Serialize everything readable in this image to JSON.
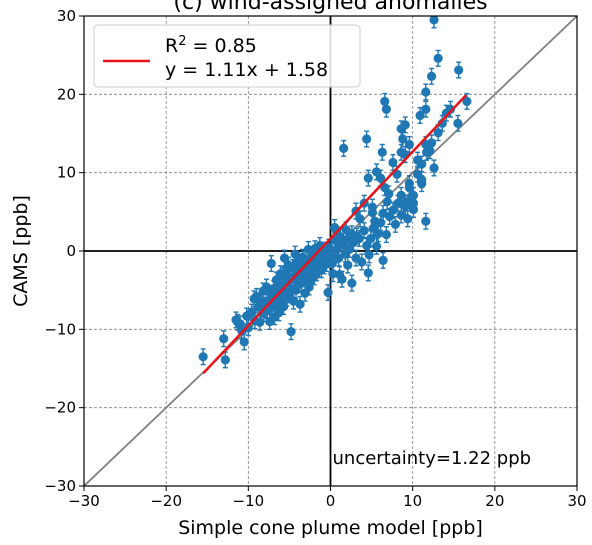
{
  "chart_data": {
    "type": "scatter",
    "title": "(c) wind-assigned anomalies",
    "xlabel": "Simple cone plume model [ppb]",
    "ylabel": "CAMS [ppb]",
    "xlim": [
      -30,
      30
    ],
    "ylim": [
      -30,
      30
    ],
    "xticks": [
      -30,
      -20,
      -10,
      0,
      10,
      20,
      30
    ],
    "yticks": [
      -30,
      -20,
      -10,
      0,
      10,
      20,
      30
    ],
    "xtick_labels": [
      "−30",
      "−20",
      "−10",
      "0",
      "10",
      "20",
      "30"
    ],
    "ytick_labels": [
      "−30",
      "−20",
      "−10",
      "0",
      "10",
      "20",
      "30"
    ],
    "grid": true,
    "grid_style": "dashed",
    "legend_position": "top-left",
    "colors": {
      "points": "#1f77b4",
      "fit": "#e8141a",
      "identity": "#808080",
      "zero_lines": "#000000",
      "grid": "#808080"
    },
    "legend": {
      "label_r2_prefix": "R",
      "label_r2_sup": "2",
      "label_r2_suffix": " = 0.85",
      "label_eq": "y = 1.11x + 1.58"
    },
    "annotation": "uncertainty=1.22 ppb",
    "error_bar_halfwidth": 1.0,
    "fit": {
      "slope": 1.11,
      "intercept": 1.58,
      "x_range": [
        -15.5,
        16.5
      ],
      "r2": 0.85
    },
    "identity_line": {
      "slope": 1,
      "intercept": 0
    },
    "points": [
      [
        -15.5,
        -13.5
      ],
      [
        -13,
        -11.2
      ],
      [
        -12.8,
        -13.9
      ],
      [
        -11.5,
        -8.8
      ],
      [
        -11,
        -9.3
      ],
      [
        -10.8,
        -10.2
      ],
      [
        -10.5,
        -11.6
      ],
      [
        -10.2,
        -8.3
      ],
      [
        -10,
        -9.8
      ],
      [
        -9.6,
        -7.8
      ],
      [
        -9.3,
        -6.1
      ],
      [
        -9.2,
        -8.9
      ],
      [
        -9,
        -5.8
      ],
      [
        -8.8,
        -7.2
      ],
      [
        -8.6,
        -9.1
      ],
      [
        -8.4,
        -6.6
      ],
      [
        -8.2,
        -5.1
      ],
      [
        -8.1,
        -8.0
      ],
      [
        -8,
        -6.9
      ],
      [
        -7.8,
        -4.6
      ],
      [
        -7.7,
        -7.6
      ],
      [
        -7.5,
        -6.3
      ],
      [
        -7.4,
        -9.0
      ],
      [
        -7.3,
        -5.4
      ],
      [
        -7.2,
        -1.6
      ],
      [
        -7.1,
        -7.2
      ],
      [
        -7,
        -6.1
      ],
      [
        -6.9,
        -4.8
      ],
      [
        -6.8,
        -8.4
      ],
      [
        -6.7,
        -5.9
      ],
      [
        -6.6,
        -3.7
      ],
      [
        -6.5,
        -6.8
      ],
      [
        -6.4,
        -4.2
      ],
      [
        -6.3,
        -7.9
      ],
      [
        -6.2,
        -5.3
      ],
      [
        -6.1,
        -2.9
      ],
      [
        -6,
        -6.4
      ],
      [
        -5.9,
        -4.6
      ],
      [
        -5.8,
        -3.1
      ],
      [
        -5.7,
        -7.1
      ],
      [
        -5.6,
        -0.9
      ],
      [
        -5.5,
        -5.2
      ],
      [
        -5.4,
        -2.4
      ],
      [
        -5.3,
        -6.0
      ],
      [
        -5.2,
        -4.0
      ],
      [
        -5.1,
        -1.8
      ],
      [
        -5,
        -5.6
      ],
      [
        -4.9,
        -3.3
      ],
      [
        -4.8,
        -10.3
      ],
      [
        -4.7,
        -4.8
      ],
      [
        -4.6,
        -2.1
      ],
      [
        -4.5,
        -6.4
      ],
      [
        -4.4,
        -3.6
      ],
      [
        -4.3,
        -0.4
      ],
      [
        -4.2,
        -5.0
      ],
      [
        -4.1,
        -2.7
      ],
      [
        -4,
        -1.3
      ],
      [
        -3.9,
        -4.3
      ],
      [
        -3.8,
        -3.0
      ],
      [
        -3.7,
        -6.8
      ],
      [
        -3.6,
        -1.9
      ],
      [
        -3.5,
        -4.1
      ],
      [
        -3.4,
        -0.8
      ],
      [
        -3.3,
        -3.4
      ],
      [
        -3.2,
        -2.2
      ],
      [
        -3.1,
        -5.4
      ],
      [
        -3,
        -1.1
      ],
      [
        -2.9,
        -3.1
      ],
      [
        -2.8,
        -2.6
      ],
      [
        -2.7,
        0.2
      ],
      [
        -2.6,
        -4.6
      ],
      [
        -2.5,
        -1.6
      ],
      [
        -2.4,
        -3.9
      ],
      [
        -2.3,
        -0.6
      ],
      [
        -2.2,
        -2.1
      ],
      [
        -2.1,
        -1.3
      ],
      [
        -2,
        -3.3
      ],
      [
        -1.9,
        0.3
      ],
      [
        -1.8,
        -1.8
      ],
      [
        -1.7,
        -2.8
      ],
      [
        -1.6,
        -0.9
      ],
      [
        -1.5,
        -2.3
      ],
      [
        -1.4,
        -1.5
      ],
      [
        -1.3,
        0.7
      ],
      [
        -1.2,
        -0.9
      ],
      [
        -1.1,
        -2.4
      ],
      [
        -1,
        -1.3
      ],
      [
        -0.9,
        -0.6
      ],
      [
        -0.8,
        -1.9
      ],
      [
        -0.7,
        0.1
      ],
      [
        -0.6,
        -0.8
      ],
      [
        -0.5,
        -1.6
      ],
      [
        -0.4,
        -0.3
      ],
      [
        -0.3,
        -1.1
      ],
      [
        -0.2,
        0.5
      ],
      [
        -0.1,
        -0.4
      ],
      [
        -0.3,
        -5.3
      ],
      [
        0.2,
        -1.6
      ],
      [
        0.3,
        -2.9
      ],
      [
        0.6,
        -0.5
      ],
      [
        0.5,
        1.4
      ],
      [
        0.9,
        0.3
      ],
      [
        1,
        -0.9
      ],
      [
        1.2,
        1.8
      ],
      [
        1.4,
        -3.6
      ],
      [
        1.6,
        0.8
      ],
      [
        1.8,
        -0.4
      ],
      [
        2.1,
        1.5
      ],
      [
        2.3,
        0.2
      ],
      [
        2.6,
        2.2
      ],
      [
        2.8,
        1.1
      ],
      [
        3.2,
        1.9
      ],
      [
        0.5,
        3.0
      ],
      [
        3.5,
        1.6
      ],
      [
        3.8,
        -1.4
      ],
      [
        4.1,
        2.6
      ],
      [
        4.4,
        0.7
      ],
      [
        4.6,
        -2.8
      ],
      [
        4.9,
        1.6
      ],
      [
        5.2,
        2.9
      ],
      [
        5.4,
        3.8
      ],
      [
        5.8,
        2.2
      ],
      [
        6.1,
        3.6
      ],
      [
        6.4,
        4.8
      ],
      [
        6.8,
        2.1
      ],
      [
        7.2,
        4.4
      ],
      [
        7.6,
        5.2
      ],
      [
        7.9,
        3.4
      ],
      [
        8.2,
        6.1
      ],
      [
        8.6,
        4.6
      ],
      [
        9.1,
        5.7
      ],
      [
        9.4,
        4.1
      ],
      [
        9.8,
        6.9
      ],
      [
        10.1,
        5.3
      ],
      [
        3.1,
        -0.9
      ],
      [
        2.1,
        -1.8
      ],
      [
        4.7,
        -0.5
      ],
      [
        5.6,
        0.6
      ],
      [
        2.6,
        -4.1
      ],
      [
        1.1,
        -3.0
      ],
      [
        6.4,
        -1.2
      ],
      [
        0.8,
        2.1
      ],
      [
        1.9,
        2.7
      ],
      [
        3.6,
        4.1
      ],
      [
        5.1,
        4.9
      ],
      [
        6.9,
        6.3
      ],
      [
        8.6,
        7.1
      ],
      [
        9.6,
        8.6
      ],
      [
        10.6,
        9.8
      ],
      [
        11.1,
        11.1
      ],
      [
        11.7,
        12.6
      ],
      [
        12.3,
        13.8
      ],
      [
        13.1,
        15.1
      ],
      [
        13.6,
        16.3
      ],
      [
        14.1,
        17.6
      ],
      [
        14.6,
        18.1
      ],
      [
        16.6,
        19.1
      ],
      [
        15.5,
        16.3
      ],
      [
        12.6,
        29.5
      ],
      [
        12.3,
        22.3
      ],
      [
        11.6,
        20.3
      ],
      [
        13.1,
        24.6
      ],
      [
        15.6,
        23.1
      ],
      [
        11.6,
        18.1
      ],
      [
        10.9,
        17.3
      ],
      [
        6.6,
        19.1
      ],
      [
        6.8,
        18.1
      ],
      [
        8.6,
        15.6
      ],
      [
        8.8,
        14.3
      ],
      [
        9.1,
        16.1
      ],
      [
        9.6,
        13.6
      ],
      [
        7.6,
        11.3
      ],
      [
        6.3,
        12.6
      ],
      [
        4.4,
        14.3
      ],
      [
        1.6,
        13.1
      ],
      [
        4.6,
        9.3
      ],
      [
        5.6,
        10.1
      ],
      [
        6.1,
        9.3
      ],
      [
        6.6,
        8.1
      ],
      [
        7.1,
        7.3
      ],
      [
        8.1,
        9.8
      ],
      [
        8.6,
        12.6
      ],
      [
        9.1,
        12.3
      ],
      [
        10.6,
        11.6
      ],
      [
        11.6,
        13.6
      ],
      [
        12.1,
        12.8
      ],
      [
        12.6,
        10.6
      ],
      [
        11.1,
        8.6
      ],
      [
        10.1,
        7.1
      ],
      [
        9.1,
        6.1
      ],
      [
        5.1,
        5.6
      ],
      [
        4.1,
        6.1
      ],
      [
        3.1,
        5.1
      ],
      [
        11.6,
        3.8
      ],
      [
        10.1,
        6.1
      ],
      [
        9.6,
        8.1
      ],
      [
        11.1,
        9.1
      ],
      [
        -11.3,
        -9.1
      ]
    ]
  }
}
